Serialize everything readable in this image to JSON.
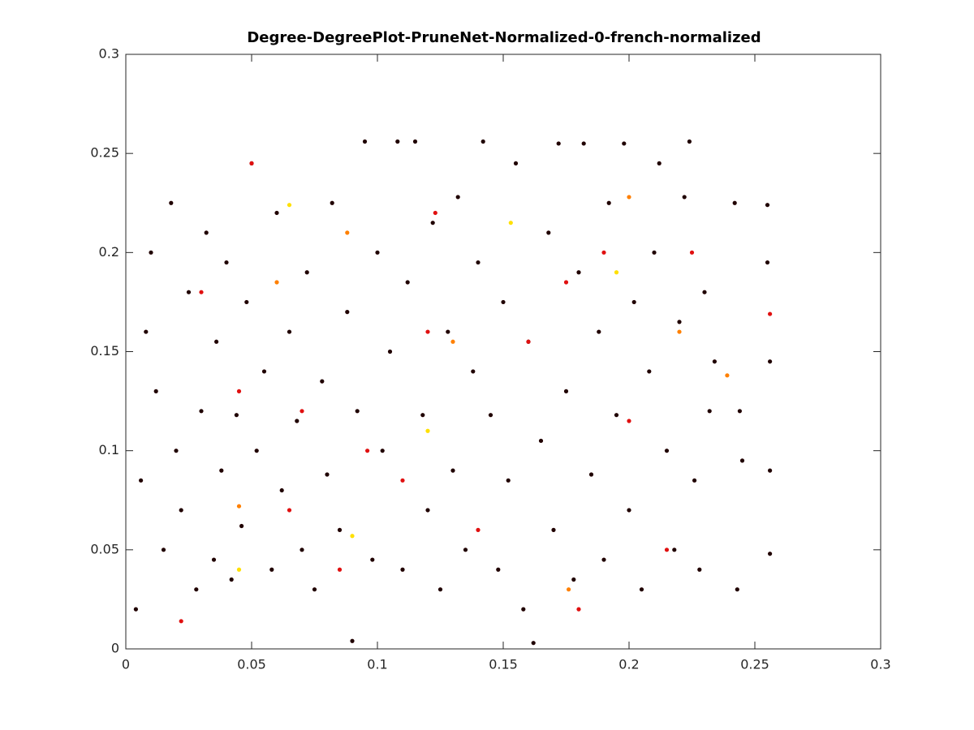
{
  "chart_data": {
    "type": "scatter",
    "title": "Degree-DegreePlot-PruneNet-Normalized-0-french-normalized",
    "xlim": [
      0,
      0.3
    ],
    "ylim": [
      0,
      0.3
    ],
    "xticks": [
      0,
      0.05,
      0.1,
      0.15,
      0.2,
      0.25,
      0.3
    ],
    "yticks": [
      0,
      0.05,
      0.1,
      0.15,
      0.2,
      0.25,
      0.3
    ],
    "grid": false,
    "series": [
      {
        "color": "#200000",
        "x": [
          0.004,
          0.006,
          0.008,
          0.01,
          0.012,
          0.015,
          0.018,
          0.02,
          0.022,
          0.025,
          0.028,
          0.03,
          0.032,
          0.035,
          0.036,
          0.038,
          0.04,
          0.042,
          0.044,
          0.046,
          0.048,
          0.05,
          0.052,
          0.055,
          0.058,
          0.06,
          0.062,
          0.065,
          0.068,
          0.07,
          0.072,
          0.075,
          0.078,
          0.08,
          0.082,
          0.085,
          0.088,
          0.09,
          0.092,
          0.095,
          0.098,
          0.1,
          0.102,
          0.105,
          0.108,
          0.11,
          0.112,
          0.115,
          0.118,
          0.12,
          0.122,
          0.125,
          0.128,
          0.13,
          0.132,
          0.135,
          0.138,
          0.14,
          0.142,
          0.145,
          0.148,
          0.15,
          0.152,
          0.155,
          0.158,
          0.16,
          0.162,
          0.165,
          0.168,
          0.17,
          0.172,
          0.175,
          0.178,
          0.18,
          0.182,
          0.185,
          0.188,
          0.19,
          0.192,
          0.195,
          0.198,
          0.2,
          0.202,
          0.205,
          0.208,
          0.21,
          0.212,
          0.215,
          0.218,
          0.22,
          0.222,
          0.224,
          0.226,
          0.228,
          0.23,
          0.232,
          0.234,
          0.242,
          0.243,
          0.244,
          0.245,
          0.255,
          0.255,
          0.256,
          0.256,
          0.256
        ],
        "y": [
          0.02,
          0.085,
          0.16,
          0.2,
          0.13,
          0.05,
          0.225,
          0.1,
          0.07,
          0.18,
          0.03,
          0.12,
          0.21,
          0.045,
          0.155,
          0.09,
          0.195,
          0.035,
          0.118,
          0.062,
          0.175,
          0.245,
          0.1,
          0.14,
          0.04,
          0.22,
          0.08,
          0.16,
          0.115,
          0.05,
          0.19,
          0.03,
          0.135,
          0.088,
          0.225,
          0.06,
          0.17,
          0.004,
          0.12,
          0.256,
          0.045,
          0.2,
          0.1,
          0.15,
          0.256,
          0.04,
          0.185,
          0.256,
          0.118,
          0.07,
          0.215,
          0.03,
          0.16,
          0.09,
          0.228,
          0.05,
          0.14,
          0.195,
          0.256,
          0.118,
          0.04,
          0.175,
          0.085,
          0.245,
          0.02,
          0.155,
          0.003,
          0.105,
          0.21,
          0.06,
          0.255,
          0.13,
          0.035,
          0.19,
          0.255,
          0.088,
          0.16,
          0.045,
          0.225,
          0.118,
          0.255,
          0.07,
          0.175,
          0.03,
          0.14,
          0.2,
          0.245,
          0.1,
          0.05,
          0.165,
          0.228,
          0.256,
          0.085,
          0.04,
          0.18,
          0.12,
          0.145,
          0.225,
          0.03,
          0.12,
          0.095,
          0.224,
          0.195,
          0.09,
          0.048,
          0.145
        ]
      },
      {
        "color": "#e01010",
        "x": [
          0.05,
          0.123,
          0.045,
          0.11,
          0.19,
          0.16,
          0.2,
          0.085,
          0.14,
          0.03,
          0.07,
          0.175,
          0.215,
          0.12,
          0.096,
          0.225,
          0.065,
          0.18,
          0.022,
          0.256
        ],
        "y": [
          0.245,
          0.22,
          0.13,
          0.085,
          0.2,
          0.155,
          0.115,
          0.04,
          0.06,
          0.18,
          0.12,
          0.185,
          0.05,
          0.16,
          0.1,
          0.2,
          0.07,
          0.02,
          0.014,
          0.169
        ]
      },
      {
        "color": "#ff8000",
        "x": [
          0.239,
          0.176,
          0.045,
          0.2,
          0.088,
          0.13,
          0.22,
          0.06
        ],
        "y": [
          0.138,
          0.03,
          0.072,
          0.228,
          0.21,
          0.155,
          0.16,
          0.185
        ]
      },
      {
        "color": "#ffe000",
        "x": [
          0.065,
          0.09,
          0.153,
          0.195,
          0.045,
          0.12
        ],
        "y": [
          0.224,
          0.057,
          0.215,
          0.19,
          0.04,
          0.11
        ]
      }
    ]
  }
}
